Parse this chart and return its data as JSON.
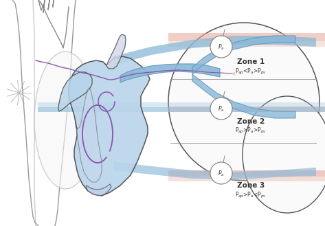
{
  "bg_color": "#ffffff",
  "figsize": [
    4.73,
    3.29
  ],
  "dpi": 100,
  "lung_outline_color": "#555555",
  "heart_fill_color": "#b8d4ea",
  "heart_outline_color": "#444444",
  "blue_vessel_color": "#8ab8d8",
  "blue_vessel_dark": "#6699bb",
  "pink_vessel_color": "#e8a898",
  "purple_color": "#8855aa",
  "zone_label_color": "#333333",
  "gray_line": "#888888",
  "body_line": "#aaaaaa",
  "zone1_label": "Zone 1",
  "zone2_label": "Zone 2",
  "zone3_label": "Zone 3",
  "zone1_formula": "P$_{ap}$<P$_a$>P$_{pv}$",
  "zone2_formula": "P$_{ap}$>P$_a$>P$_{pv}$",
  "zone3_formula": "P$_{ap}$>P$_a$<P$_{pv}$"
}
